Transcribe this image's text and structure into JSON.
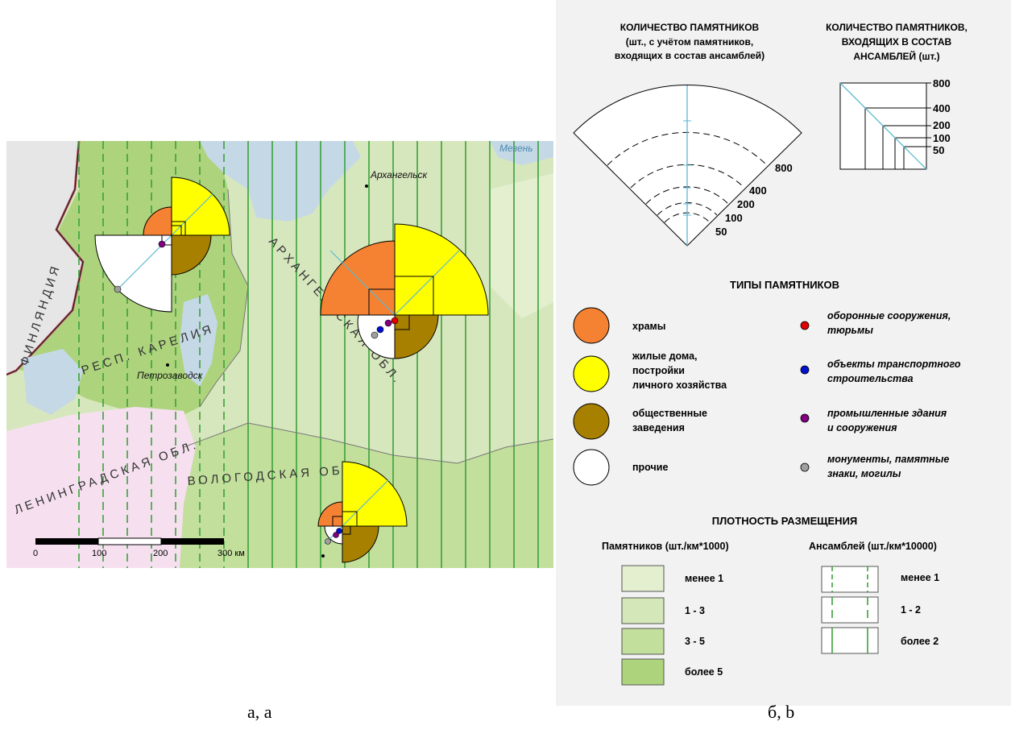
{
  "map": {
    "country_label": "ФИНЛЯНДИЯ",
    "regions": [
      {
        "name": "РЕСП. КАРЕЛИЯ"
      },
      {
        "name": "АРХАНГЕЛЬСКАЯ ОБЛ."
      },
      {
        "name": "ВОЛОГОДСКАЯ ОБЛ."
      },
      {
        "name": "ЛЕНИНГРАДСКАЯ ОБЛ."
      }
    ],
    "cities": [
      {
        "name": "Архангельск"
      },
      {
        "name": "Петрозаводск"
      }
    ],
    "river": "Мезень",
    "scalebar": {
      "ticks": [
        "0",
        "100",
        "200",
        "300 км"
      ]
    }
  },
  "legend": {
    "count_title": [
      "КОЛИЧЕСТВО ПАМЯТНИКОВ",
      "(шт., с учётом памятников,",
      "входящих в состав ансамблей)"
    ],
    "count_scale": [
      "800",
      "400",
      "200",
      "100",
      "50"
    ],
    "ensemble_title": [
      "КОЛИЧЕСТВО ПАМЯТНИКОВ,",
      "ВХОДЯЩИХ В СОСТАВ",
      "АНСАМБЛЕЙ (шт.)"
    ],
    "ensemble_scale": [
      "800",
      "400",
      "200",
      "100",
      "50"
    ],
    "types_title": "ТИПЫ ПАМЯТНИКОВ",
    "big_types": [
      {
        "lines": [
          "храмы"
        ],
        "color": "#f58232"
      },
      {
        "lines": [
          "жилые дома,",
          "постройки",
          "личного хозяйства"
        ],
        "color": "#ffff00"
      },
      {
        "lines": [
          "общественные",
          "заведения"
        ],
        "color": "#a88000"
      },
      {
        "lines": [
          "прочие"
        ],
        "color": "#ffffff"
      }
    ],
    "small_types": [
      {
        "lines": [
          "оборонные сооружения,",
          "тюрьмы"
        ],
        "color": "#e00000"
      },
      {
        "lines": [
          "объекты транспортного",
          "строительства"
        ],
        "color": "#0010d0"
      },
      {
        "lines": [
          "промышленные здания",
          "и сооружения"
        ],
        "color": "#800080"
      },
      {
        "lines": [
          "монументы, памятные",
          "знаки, могилы"
        ],
        "color": "#a0a0a0"
      }
    ],
    "density_title": "ПЛОТНОСТЬ РАЗМЕЩЕНИЯ",
    "monuments_title": "Памятников (шт./км*1000)",
    "monument_classes": [
      {
        "label": "менее 1",
        "color": "#e4efd0"
      },
      {
        "label": "1 - 3",
        "color": "#d4e7b8"
      },
      {
        "label": "3 - 5",
        "color": "#c2df9c"
      },
      {
        "label": "более 5",
        "color": "#add47c"
      }
    ],
    "ensembles_title": "Ансамблей (шт./км*10000)",
    "ensemble_classes": [
      {
        "label": "менее 1"
      },
      {
        "label": "1 - 2"
      },
      {
        "label": "более 2"
      }
    ]
  },
  "captions": {
    "a": "а, a",
    "b": "б, b"
  }
}
